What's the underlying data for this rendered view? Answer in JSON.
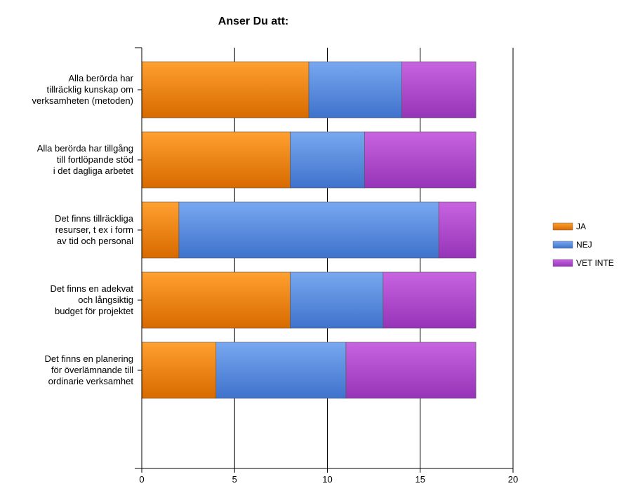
{
  "chart_data": {
    "type": "bar",
    "orientation": "horizontal",
    "stacked": true,
    "title": "Anser Du att:",
    "xlabel": "",
    "ylabel": "",
    "xlim": [
      0,
      20
    ],
    "x_ticks": [
      0,
      5,
      10,
      15,
      20
    ],
    "grid": true,
    "legend_position": "right",
    "categories": [
      [
        "Alla berörda har",
        "tillräcklig kunskap om",
        "verksamheten (metoden)"
      ],
      [
        "Alla berörda har tillgång",
        "till fortlöpande stöd",
        "i det dagliga arbetet"
      ],
      [
        "Det finns tillräckliga",
        "resurser, t ex i form",
        "av tid och personal"
      ],
      [
        "Det finns en adekvat",
        "och långsiktig",
        "budget för projektet"
      ],
      [
        "Det finns en planering",
        "för överlämnande till",
        "ordinarie verksamhet"
      ]
    ],
    "series": [
      {
        "name": "JA",
        "color": "#f08a10",
        "values": [
          9,
          8,
          2,
          8,
          4
        ]
      },
      {
        "name": "NEJ",
        "color": "#5a8fe0",
        "values": [
          5,
          4,
          14,
          5,
          7
        ]
      },
      {
        "name": "VET INTE",
        "color": "#b048d0",
        "values": [
          4,
          6,
          2,
          5,
          7
        ]
      }
    ]
  }
}
